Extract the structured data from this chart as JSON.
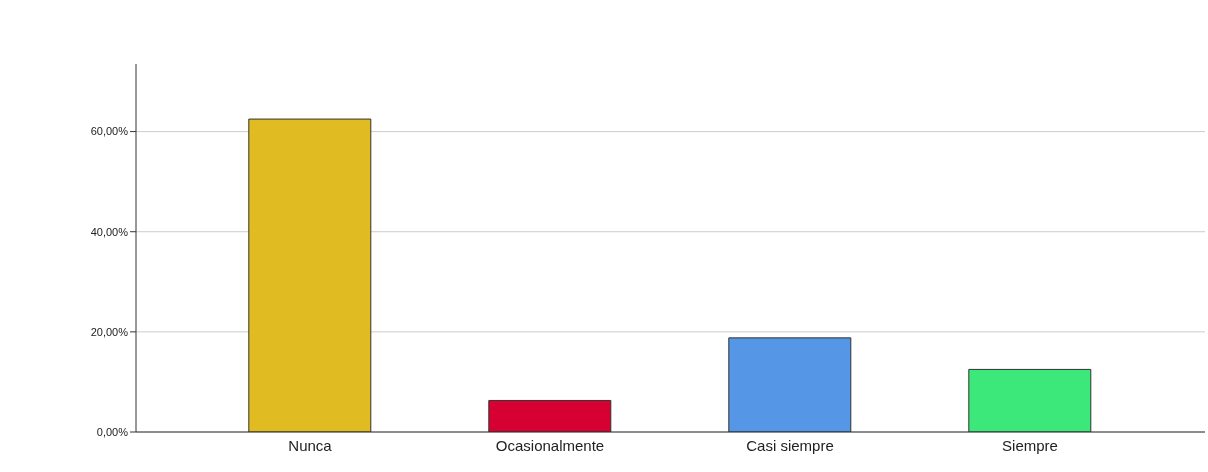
{
  "chart_data": {
    "type": "bar",
    "categories": [
      "Nunca",
      "Ocasionalmente",
      "Casi siempre",
      "Siempre"
    ],
    "values": [
      62.5,
      6.3,
      18.8,
      12.5
    ],
    "colors": [
      "#e0bc22",
      "#d70032",
      "#5597e6",
      "#3de87a"
    ],
    "ylim": [
      0,
      73.5
    ],
    "yticks": [
      {
        "value": 0,
        "label": "0,00%"
      },
      {
        "value": 20,
        "label": "20,00%"
      },
      {
        "value": 40,
        "label": "40,00%"
      },
      {
        "value": 60,
        "label": "60,00%"
      }
    ],
    "grid": "y"
  }
}
